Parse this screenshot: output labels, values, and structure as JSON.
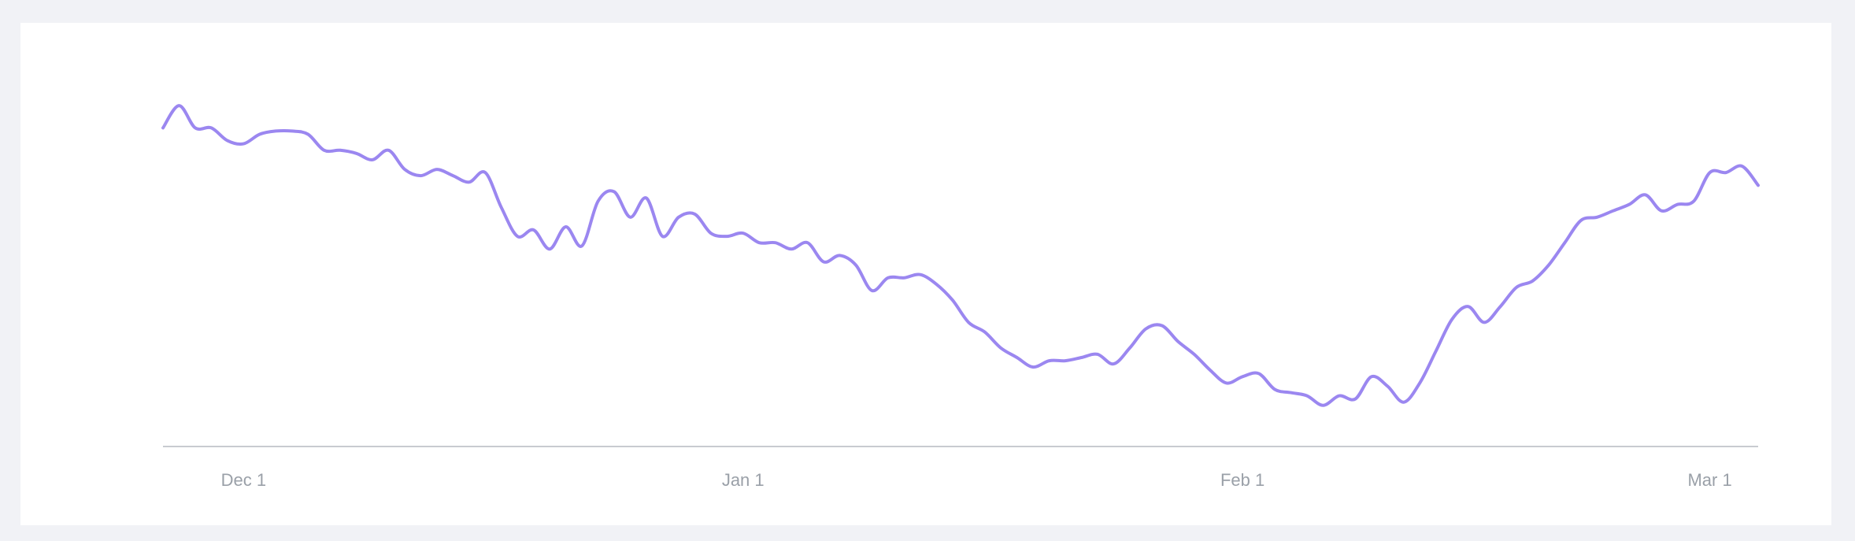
{
  "chart_data": {
    "type": "line",
    "title": "",
    "xlabel": "",
    "ylabel": "",
    "grid": false,
    "legend": "none",
    "line_color": "#9b87f0",
    "axis_color": "#c8cbd0",
    "tick_color": "#9aa0a8",
    "x_ticks": [
      {
        "date": "2023-12-01",
        "label": "Dec 1"
      },
      {
        "date": "2024-01-01",
        "label": "Jan 1"
      },
      {
        "date": "2024-02-01",
        "label": "Feb 1"
      },
      {
        "date": "2024-03-01",
        "label": "Mar 1"
      }
    ],
    "ylim": [
      0,
      100
    ],
    "series": [
      {
        "x": [
          "2023-11-26",
          "2023-11-27",
          "2023-11-28",
          "2023-11-29",
          "2023-11-30",
          "2023-12-01",
          "2023-12-02",
          "2023-12-03",
          "2023-12-04",
          "2023-12-05",
          "2023-12-06",
          "2023-12-07",
          "2023-12-08",
          "2023-12-09",
          "2023-12-10",
          "2023-12-11",
          "2023-12-12",
          "2023-12-13",
          "2023-12-14",
          "2023-12-15",
          "2023-12-16",
          "2023-12-17",
          "2023-12-18",
          "2023-12-19",
          "2023-12-20",
          "2023-12-21",
          "2023-12-22",
          "2023-12-23",
          "2023-12-24",
          "2023-12-25",
          "2023-12-26",
          "2023-12-27",
          "2023-12-28",
          "2023-12-29",
          "2023-12-30",
          "2023-12-31",
          "2024-01-01",
          "2024-01-02",
          "2024-01-03",
          "2024-01-04",
          "2024-01-05",
          "2024-01-06",
          "2024-01-07",
          "2024-01-08",
          "2024-01-09",
          "2024-01-10",
          "2024-01-11",
          "2024-01-12",
          "2024-01-13",
          "2024-01-14",
          "2024-01-15",
          "2024-01-16",
          "2024-01-17",
          "2024-01-18",
          "2024-01-19",
          "2024-01-20",
          "2024-01-21",
          "2024-01-22",
          "2024-01-23",
          "2024-01-24",
          "2024-01-25",
          "2024-01-26",
          "2024-01-27",
          "2024-01-28",
          "2024-01-29",
          "2024-01-30",
          "2024-01-31",
          "2024-02-01",
          "2024-02-02",
          "2024-02-03",
          "2024-02-04",
          "2024-02-05",
          "2024-02-06",
          "2024-02-07",
          "2024-02-08",
          "2024-02-09",
          "2024-02-10",
          "2024-02-11",
          "2024-02-12",
          "2024-02-13",
          "2024-02-14",
          "2024-02-15",
          "2024-02-16",
          "2024-02-17",
          "2024-02-18",
          "2024-02-19",
          "2024-02-20",
          "2024-02-21",
          "2024-02-22",
          "2024-02-23",
          "2024-02-24",
          "2024-02-25",
          "2024-02-26",
          "2024-02-27",
          "2024-02-28",
          "2024-02-29",
          "2024-03-01",
          "2024-03-02",
          "2024-03-03",
          "2024-03-04"
        ],
        "values": [
          92,
          99,
          92,
          92,
          88,
          87,
          90,
          91,
          91,
          90,
          85,
          85,
          84,
          82,
          85,
          79,
          77,
          79,
          77,
          75,
          78,
          67,
          58,
          60,
          54,
          61,
          55,
          69,
          72,
          64,
          70,
          58,
          64,
          65,
          59,
          58,
          59,
          56,
          56,
          54,
          56,
          50,
          52,
          49,
          41,
          45,
          45,
          46,
          43,
          38,
          31,
          28,
          23,
          20,
          17,
          19,
          19,
          20,
          21,
          18,
          23,
          29,
          30,
          25,
          21,
          16,
          12,
          14,
          15,
          10,
          9,
          8,
          5,
          8,
          7,
          14,
          11,
          6,
          12,
          22,
          32,
          36,
          31,
          36,
          42,
          44,
          49,
          56,
          63,
          64,
          66,
          68,
          71,
          66,
          68,
          69,
          78,
          78,
          80,
          74
        ]
      }
    ]
  }
}
